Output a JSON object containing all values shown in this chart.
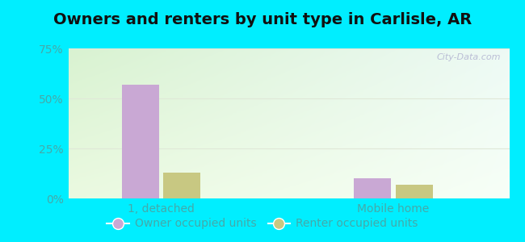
{
  "title": "Owners and renters by unit type in Carlisle, AR",
  "categories": [
    "1, detached",
    "Mobile home"
  ],
  "owner_values": [
    57,
    10
  ],
  "renter_values": [
    13,
    7
  ],
  "owner_color": "#c9a8d4",
  "renter_color": "#c8c882",
  "ylim": [
    0,
    75
  ],
  "yticks": [
    0,
    25,
    50,
    75
  ],
  "ytick_labels": [
    "0%",
    "25%",
    "50%",
    "75%"
  ],
  "bar_width": 0.32,
  "group_positions": [
    1.0,
    3.0
  ],
  "outer_bg": "#00eeff",
  "watermark": "City-Data.com",
  "legend_owner": "Owner occupied units",
  "legend_renter": "Renter occupied units",
  "title_fontsize": 14,
  "tick_fontsize": 10,
  "legend_fontsize": 10,
  "tick_color": "#44aaaa",
  "grid_color": "#e0e8d8",
  "xlim": [
    0.2,
    4.0
  ]
}
